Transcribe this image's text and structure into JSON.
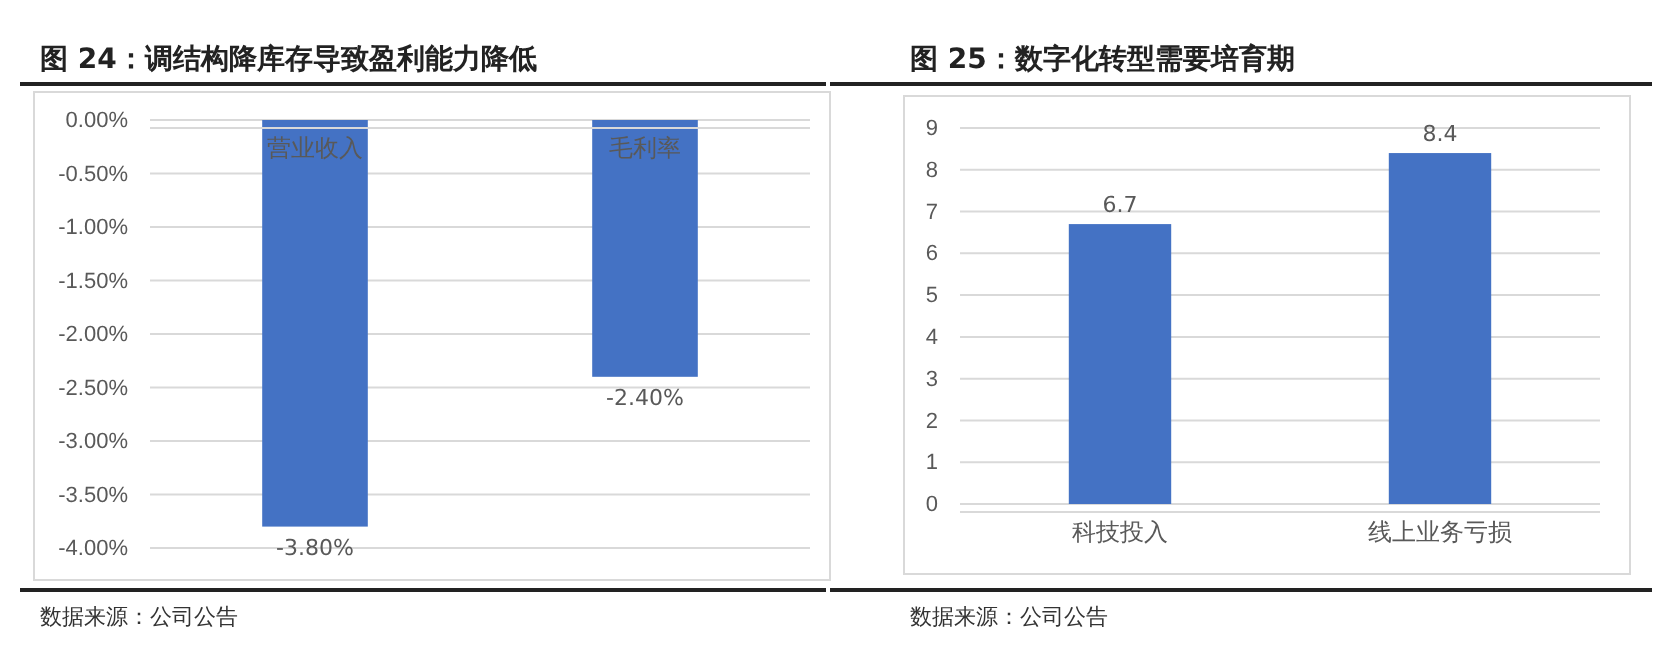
{
  "chart_data": [
    {
      "type": "bar",
      "title": "图 24：调结构降库存导致盈利能力降低",
      "categories": [
        "营业收入",
        "毛利率"
      ],
      "values": [
        -3.8,
        -2.4
      ],
      "value_labels": [
        "-3.80%",
        "-2.40%"
      ],
      "color": "#4472c4",
      "ylim": [
        -4,
        0
      ],
      "yticks": [
        {
          "value": 0,
          "label": "0.00%"
        },
        {
          "value": -0.5,
          "label": "-0.50%"
        },
        {
          "value": -1,
          "label": "-1.00%"
        },
        {
          "value": -1.5,
          "label": "-1.50%"
        },
        {
          "value": -2,
          "label": "-2.00%"
        },
        {
          "value": -2.5,
          "label": "-2.50%"
        },
        {
          "value": -3,
          "label": "-3.00%"
        },
        {
          "value": -3.5,
          "label": "-3.50%"
        },
        {
          "value": -4,
          "label": "-4.00%"
        }
      ],
      "grid": "y",
      "annotations": [
        "数据来源：公司公告"
      ]
    },
    {
      "type": "bar",
      "title": "图 25：数字化转型需要培育期",
      "categories": [
        "科技投入",
        "线上业务亏损"
      ],
      "values": [
        6.7,
        8.4
      ],
      "data_labels": true,
      "color": "#4472c4",
      "ylim": [
        0,
        9
      ],
      "yticks": [
        0,
        1,
        2,
        3,
        4,
        5,
        6,
        7,
        8,
        9
      ],
      "grid": "y",
      "annotations": [
        "数据来源：公司公告"
      ]
    }
  ]
}
